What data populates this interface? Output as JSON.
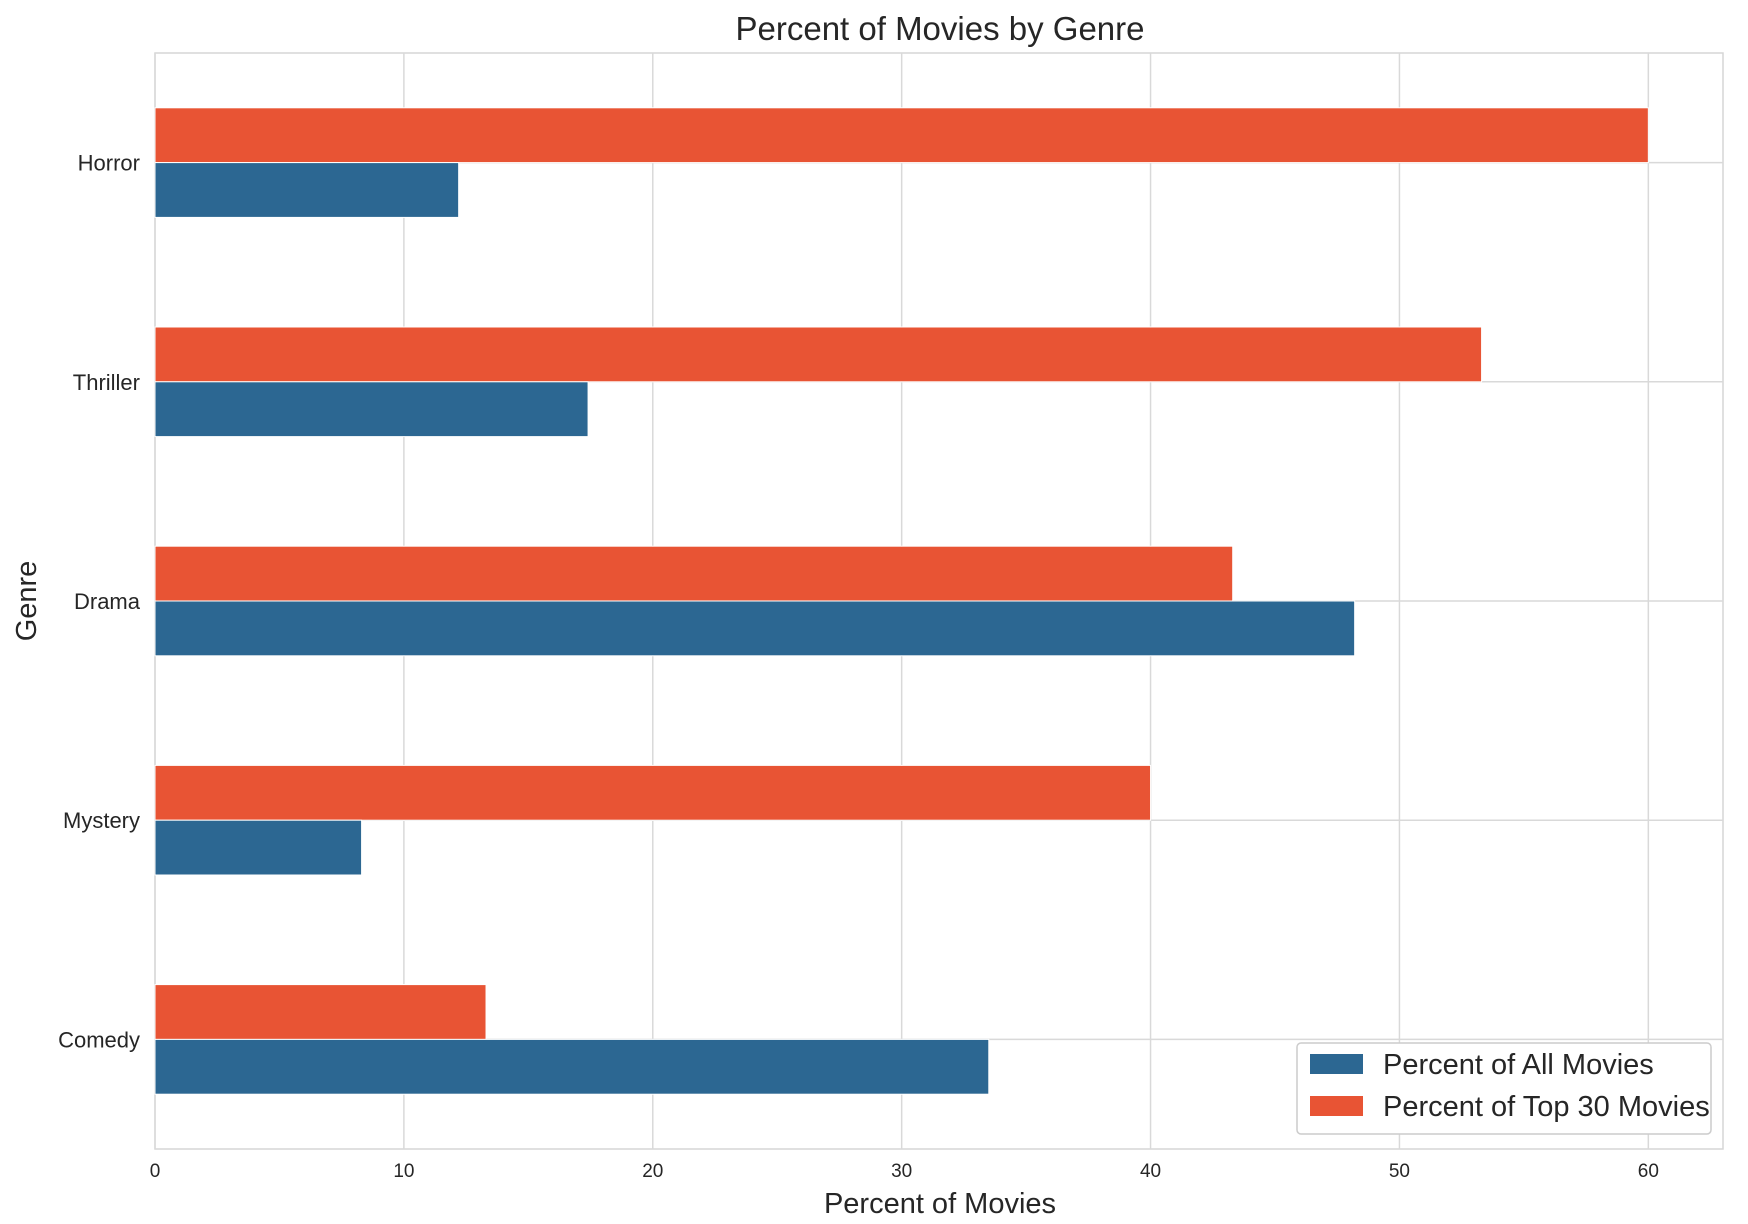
{
  "chart_data": {
    "type": "bar",
    "orientation": "horizontal",
    "title": "Percent of Movies by Genre",
    "xlabel": "Percent of Movies",
    "ylabel": "Genre",
    "xlim": [
      0,
      63
    ],
    "xticks": [
      0,
      10,
      20,
      30,
      40,
      50,
      60
    ],
    "categories": [
      "Horror",
      "Thriller",
      "Drama",
      "Mystery",
      "Comedy"
    ],
    "series": [
      {
        "name": "Percent of All Movies",
        "color": "#2c6792",
        "values": [
          12.2,
          17.4,
          48.2,
          8.3,
          33.5
        ]
      },
      {
        "name": "Percent of Top 30 Movies",
        "color": "#e85434",
        "values": [
          60.0,
          53.3,
          43.3,
          40.0,
          13.3
        ]
      }
    ],
    "grid": true,
    "legend_position": "bottom-right"
  }
}
